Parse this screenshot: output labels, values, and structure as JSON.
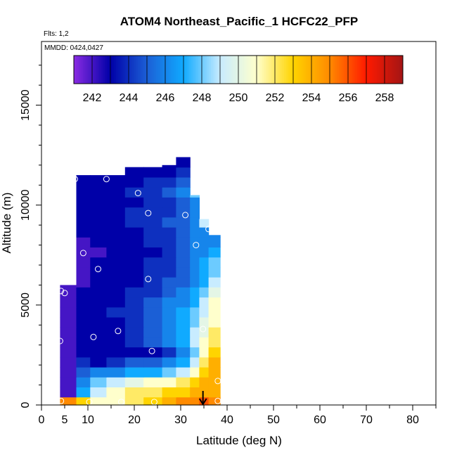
{
  "chart_data": {
    "type": "heatmap",
    "title": "ATOM4 Northeast_Pacific_1 HCFC22_PFP",
    "flights_note": "Flts: 1,2",
    "mmdd_note": "MMDD: 0424,0427",
    "xlabel": "Latitude (deg N)",
    "ylabel": "Altitude (m)",
    "xlim": [
      0,
      85
    ],
    "ylim": [
      0,
      17500
    ],
    "x_ticks": [
      0,
      5,
      10,
      20,
      30,
      40,
      50,
      60,
      70,
      80
    ],
    "x_tick_labels": [
      "0",
      "5",
      "10",
      "20",
      "30",
      "40",
      "50",
      "60",
      "70",
      "80"
    ],
    "y_ticks": [
      0,
      5000,
      10000,
      15000
    ],
    "y_tick_labels": [
      "0",
      "5000",
      "10000",
      "15000"
    ],
    "colorbar": {
      "min": 241,
      "max": 259,
      "tick_values": [
        242,
        244,
        246,
        248,
        250,
        252,
        254,
        256,
        258
      ],
      "tick_labels": [
        "242",
        "244",
        "246",
        "248",
        "250",
        "252",
        "254",
        "256",
        "258"
      ],
      "colors": [
        "#8a2be2",
        "#0000a8",
        "#1b5fd6",
        "#10aaff",
        "#c8ecff",
        "#ffffcc",
        "#ffd400",
        "#ff8a00",
        "#ff1a00",
        "#a31515"
      ]
    },
    "column_edges": [
      4,
      7.5,
      10.5,
      14,
      18,
      22,
      26,
      29,
      32,
      34,
      36,
      38.5
    ],
    "column_tops": [
      6000,
      11500,
      11500,
      11500,
      11900,
      11900,
      12000,
      12500,
      10500,
      9300,
      8500
    ],
    "altitude_levels": [
      0,
      400,
      900,
      1400,
      1900,
      2400,
      2900,
      3400,
      3900,
      4400,
      4900,
      5400,
      5900,
      6400,
      6900,
      7400,
      7900,
      8400,
      8900,
      9400,
      9900,
      10400,
      10900,
      11400,
      11900,
      12400
    ],
    "values": [
      [
        255,
        253,
        251,
        251,
        252,
        253,
        254,
        255,
        255,
        256,
        255
      ],
      [
        242,
        247,
        249,
        251,
        252,
        252,
        253,
        253,
        254,
        254,
        254
      ],
      [
        242,
        246,
        248,
        249,
        250,
        251,
        251,
        252,
        253,
        254,
        254
      ],
      [
        242,
        245,
        246,
        246,
        247,
        247,
        248,
        249,
        251,
        253,
        254
      ],
      [
        242,
        244,
        243,
        244,
        245,
        245,
        246,
        247,
        249,
        252,
        254
      ],
      [
        242,
        243,
        243,
        243,
        243,
        243,
        244,
        246,
        248,
        251,
        253
      ],
      [
        242,
        243,
        243,
        243,
        244,
        245,
        246,
        247,
        249,
        251,
        252
      ],
      [
        242,
        243,
        243,
        243,
        244,
        245,
        246,
        247,
        249,
        250,
        252
      ],
      [
        242,
        243,
        243,
        243,
        244,
        245,
        246,
        247,
        248,
        250,
        251
      ],
      [
        242,
        243,
        243,
        244,
        244,
        245,
        246,
        247,
        248,
        249,
        251
      ],
      [
        242,
        243,
        243,
        243,
        244,
        245,
        246,
        246,
        247,
        249,
        251
      ],
      [
        242,
        243,
        243,
        243,
        244,
        244,
        245,
        246,
        247,
        248,
        250
      ],
      [
        242,
        242,
        243,
        243,
        243,
        244,
        245,
        245,
        246,
        247,
        249
      ],
      [
        242,
        242,
        243,
        243,
        243,
        244,
        244,
        245,
        246,
        247,
        248
      ],
      [
        242,
        242,
        243,
        243,
        243,
        244,
        244,
        245,
        246,
        247,
        248
      ],
      [
        242,
        242,
        242,
        243,
        243,
        243,
        244,
        245,
        246,
        246,
        247
      ],
      [
        242,
        242,
        243,
        243,
        243,
        244,
        244,
        245,
        246,
        246,
        246
      ],
      [
        242,
        243,
        243,
        243,
        243,
        244,
        244,
        245,
        246,
        246,
        246
      ],
      [
        242,
        243,
        243,
        243,
        244,
        244,
        245,
        245,
        246,
        249,
        256
      ],
      [
        242,
        243,
        243,
        243,
        244,
        244,
        244,
        245,
        246,
        249,
        255
      ],
      [
        242,
        243,
        243,
        243,
        243,
        244,
        244,
        245,
        246,
        248,
        255
      ],
      [
        242,
        243,
        243,
        243,
        244,
        244,
        245,
        246,
        248,
        250,
        253
      ],
      [
        242,
        243,
        243,
        243,
        243,
        244,
        244,
        245,
        247,
        249,
        253
      ],
      [
        242,
        243,
        243,
        243,
        243,
        243,
        243,
        244,
        246,
        248,
        252
      ],
      [
        242,
        243,
        243,
        243,
        243,
        243,
        243,
        243,
        244,
        246,
        251
      ]
    ],
    "samples": [
      {
        "lat": 4.2,
        "alt": 200
      },
      {
        "lat": 10.3,
        "alt": 150
      },
      {
        "lat": 17.2,
        "alt": 150
      },
      {
        "lat": 24.3,
        "alt": 150
      },
      {
        "lat": 38.0,
        "alt": 200
      },
      {
        "lat": 38.0,
        "alt": 1200
      },
      {
        "lat": 4.0,
        "alt": 3200
      },
      {
        "lat": 11.2,
        "alt": 3400
      },
      {
        "lat": 16.5,
        "alt": 3700
      },
      {
        "lat": 23.8,
        "alt": 2700
      },
      {
        "lat": 34.8,
        "alt": 3800
      },
      {
        "lat": 4.2,
        "alt": 5700
      },
      {
        "lat": 5.0,
        "alt": 5600
      },
      {
        "lat": 23.0,
        "alt": 6300
      },
      {
        "lat": 12.2,
        "alt": 6800
      },
      {
        "lat": 9.0,
        "alt": 7600
      },
      {
        "lat": 33.3,
        "alt": 8000
      },
      {
        "lat": 36.0,
        "alt": 8800
      },
      {
        "lat": 5.0,
        "alt": 9800
      },
      {
        "lat": 23.0,
        "alt": 9600
      },
      {
        "lat": 31.0,
        "alt": 9500
      },
      {
        "lat": 7.2,
        "alt": 11300
      },
      {
        "lat": 14.0,
        "alt": 11300
      },
      {
        "lat": 20.8,
        "alt": 10600
      }
    ],
    "arrow_lat": 34.8,
    "grid": false,
    "legend": "colorbar top"
  }
}
